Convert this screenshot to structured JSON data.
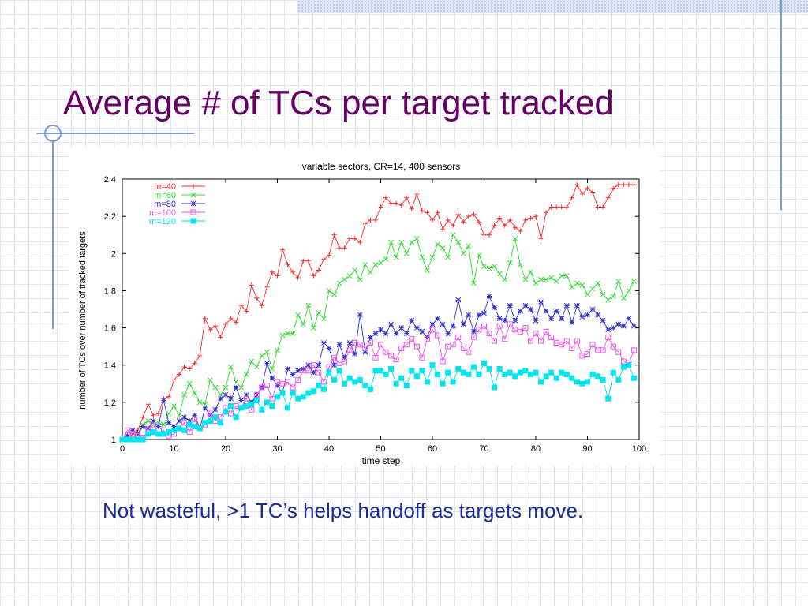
{
  "slide": {
    "title": "Average # of TCs per target tracked",
    "caption": "Not wasteful, >1 TC’s helps handoff as targets move."
  },
  "chart_data": {
    "type": "line",
    "title": "variable sectors, CR=14, 400 sensors",
    "xlabel": "time step",
    "ylabel": "number of TCs over number of tracked targets",
    "xlim": [
      0,
      100
    ],
    "ylim": [
      1,
      2.4
    ],
    "xticks": [
      0,
      10,
      20,
      30,
      40,
      50,
      60,
      70,
      80,
      90,
      100
    ],
    "yticks": [
      1,
      1.2,
      1.4,
      1.6,
      1.8,
      2,
      2.2,
      2.4
    ],
    "grid": false,
    "legend_position": "top-left",
    "x": [
      0,
      1,
      2,
      3,
      4,
      5,
      6,
      7,
      8,
      9,
      10,
      11,
      12,
      13,
      14,
      15,
      16,
      17,
      18,
      19,
      20,
      21,
      22,
      23,
      24,
      25,
      26,
      27,
      28,
      29,
      30,
      31,
      32,
      33,
      34,
      35,
      36,
      37,
      38,
      39,
      40,
      41,
      42,
      43,
      44,
      45,
      46,
      47,
      48,
      49,
      50,
      51,
      52,
      53,
      54,
      55,
      56,
      57,
      58,
      59,
      60,
      61,
      62,
      63,
      64,
      65,
      66,
      67,
      68,
      69,
      70,
      71,
      72,
      73,
      74,
      75,
      76,
      77,
      78,
      79,
      80,
      81,
      82,
      83,
      84,
      85,
      86,
      87,
      88,
      89,
      90,
      91,
      92,
      93,
      94,
      95,
      96,
      97,
      98,
      99
    ],
    "series": [
      {
        "name": "m=40",
        "color": "#ff2a2a",
        "marker": "plus",
        "values": [
          1,
          1,
          1.03,
          1.05,
          1.12,
          1.19,
          1.13,
          1.14,
          1.22,
          1.23,
          1.32,
          1.35,
          1.39,
          1.38,
          1.41,
          1.45,
          1.65,
          1.59,
          1.61,
          1.55,
          1.62,
          1.65,
          1.63,
          1.72,
          1.69,
          1.83,
          1.76,
          1.72,
          1.82,
          1.9,
          1.88,
          2.02,
          1.94,
          1.9,
          1.87,
          1.96,
          1.96,
          1.88,
          1.91,
          1.97,
          1.99,
          2.1,
          2.03,
          2.03,
          2.08,
          2.08,
          2.06,
          2.16,
          2.18,
          2.18,
          2.25,
          2.3,
          2.27,
          2.27,
          2.26,
          2.3,
          2.24,
          2.32,
          2.23,
          2.22,
          2.18,
          2.22,
          2.13,
          2.18,
          2.15,
          2.21,
          2.17,
          2.2,
          2.21,
          2.17,
          2.1,
          2.1,
          2.15,
          2.19,
          2.15,
          2.18,
          2.14,
          2.12,
          2.18,
          2.19,
          2.2,
          2.08,
          2.22,
          2.25,
          2.25,
          2.25,
          2.25,
          2.3,
          2.37,
          2.32,
          2.35,
          2.33,
          2.25,
          2.25,
          2.3,
          2.35,
          2.37,
          2.37,
          2.37,
          2.37
        ]
      },
      {
        "name": "m=60",
        "color": "#33dd33",
        "marker": "x",
        "values": [
          1,
          1,
          1.01,
          1.03,
          1.08,
          1.1,
          1.09,
          1.09,
          1.08,
          1.14,
          1.18,
          1.13,
          1.24,
          1.3,
          1.25,
          1.2,
          1.19,
          1.32,
          1.28,
          1.24,
          1.28,
          1.39,
          1.31,
          1.28,
          1.35,
          1.42,
          1.39,
          1.45,
          1.47,
          1.38,
          1.48,
          1.56,
          1.57,
          1.57,
          1.67,
          1.62,
          1.72,
          1.6,
          1.68,
          1.65,
          1.8,
          1.78,
          1.84,
          1.86,
          1.88,
          1.91,
          1.86,
          1.94,
          1.9,
          1.94,
          1.95,
          1.97,
          2.06,
          1.98,
          2.06,
          2.0,
          2.06,
          2.08,
          1.98,
          1.91,
          1.98,
          2.05,
          2.03,
          1.98,
          2.1,
          2.06,
          2.0,
          2.04,
          1.84,
          1.99,
          1.93,
          1.92,
          1.93,
          1.89,
          1.86,
          1.95,
          2.08,
          1.94,
          1.86,
          1.9,
          1.84,
          1.86,
          1.86,
          1.87,
          1.85,
          1.88,
          1.88,
          1.82,
          1.84,
          1.83,
          1.78,
          1.81,
          1.84,
          1.78,
          1.75,
          1.77,
          1.85,
          1.76,
          1.8,
          1.85
        ]
      },
      {
        "name": "m=80",
        "color": "#3333cc",
        "marker": "star",
        "values": [
          1,
          1.02,
          1.05,
          1.03,
          1.07,
          1.06,
          1.1,
          1.07,
          1.21,
          1.09,
          1.07,
          1.1,
          1.12,
          1.1,
          1.13,
          1.06,
          1.17,
          1.13,
          1.16,
          1.22,
          1.24,
          1.22,
          1.28,
          1.21,
          1.24,
          1.2,
          1.24,
          1.28,
          1.41,
          1.33,
          1.29,
          1.25,
          1.38,
          1.35,
          1.37,
          1.38,
          1.4,
          1.36,
          1.4,
          1.52,
          1.49,
          1.4,
          1.51,
          1.44,
          1.52,
          1.46,
          1.67,
          1.47,
          1.55,
          1.57,
          1.59,
          1.57,
          1.62,
          1.57,
          1.6,
          1.57,
          1.64,
          1.6,
          1.58,
          1.55,
          1.62,
          1.65,
          1.62,
          1.57,
          1.61,
          1.75,
          1.62,
          1.67,
          1.58,
          1.67,
          1.68,
          1.77,
          1.71,
          1.65,
          1.64,
          1.72,
          1.64,
          1.69,
          1.72,
          1.7,
          1.64,
          1.74,
          1.69,
          1.65,
          1.69,
          1.65,
          1.72,
          1.63,
          1.72,
          1.66,
          1.67,
          1.7,
          1.67,
          1.64,
          1.59,
          1.6,
          1.62,
          1.61,
          1.65,
          1.61
        ]
      },
      {
        "name": "m=100",
        "color": "#ee55ee",
        "marker": "open-square",
        "values": [
          1,
          1.05,
          1.03,
          1.02,
          1.01,
          1.05,
          1.08,
          1.03,
          1.05,
          1.02,
          1.03,
          1.06,
          1.09,
          1.04,
          1.11,
          1.06,
          1.08,
          1.14,
          1.1,
          1.12,
          1.17,
          1.14,
          1.18,
          1.17,
          1.22,
          1.16,
          1.24,
          1.28,
          1.29,
          1.22,
          1.31,
          1.3,
          1.31,
          1.28,
          1.32,
          1.37,
          1.37,
          1.4,
          1.36,
          1.31,
          1.39,
          1.44,
          1.41,
          1.42,
          1.48,
          1.52,
          1.51,
          1.49,
          1.52,
          1.44,
          1.51,
          1.47,
          1.45,
          1.43,
          1.49,
          1.51,
          1.54,
          1.5,
          1.44,
          1.54,
          1.59,
          1.56,
          1.42,
          1.5,
          1.51,
          1.55,
          1.49,
          1.47,
          1.55,
          1.59,
          1.61,
          1.57,
          1.53,
          1.61,
          1.54,
          1.62,
          1.59,
          1.58,
          1.6,
          1.53,
          1.57,
          1.53,
          1.58,
          1.55,
          1.52,
          1.51,
          1.53,
          1.49,
          1.53,
          1.45,
          1.46,
          1.51,
          1.48,
          1.48,
          1.55,
          1.5,
          1.47,
          1.42,
          1.41,
          1.48
        ]
      },
      {
        "name": "m=120",
        "color": "#00e5ee",
        "marker": "filled-square",
        "values": [
          1,
          1,
          1,
          1,
          1,
          1.03,
          1.04,
          1.03,
          1.03,
          1.04,
          1.05,
          1.06,
          1.05,
          1.08,
          1.07,
          1.06,
          1.09,
          1.1,
          1.12,
          1.09,
          1.15,
          1.18,
          1.12,
          1.17,
          1.18,
          1.19,
          1.21,
          1.16,
          1.2,
          1.18,
          1.23,
          1.25,
          1.17,
          1.25,
          1.22,
          1.23,
          1.25,
          1.26,
          1.29,
          1.27,
          1.36,
          1.32,
          1.37,
          1.3,
          1.33,
          1.31,
          1.32,
          1.29,
          1.27,
          1.37,
          1.37,
          1.35,
          1.38,
          1.3,
          1.33,
          1.29,
          1.37,
          1.34,
          1.37,
          1.31,
          1.4,
          1.35,
          1.3,
          1.36,
          1.31,
          1.38,
          1.36,
          1.35,
          1.39,
          1.35,
          1.41,
          1.38,
          1.28,
          1.38,
          1.35,
          1.36,
          1.34,
          1.36,
          1.37,
          1.35,
          1.36,
          1.31,
          1.34,
          1.36,
          1.33,
          1.36,
          1.35,
          1.33,
          1.31,
          1.3,
          1.31,
          1.35,
          1.34,
          1.32,
          1.22,
          1.36,
          1.32,
          1.39,
          1.4,
          1.33
        ]
      }
    ]
  }
}
